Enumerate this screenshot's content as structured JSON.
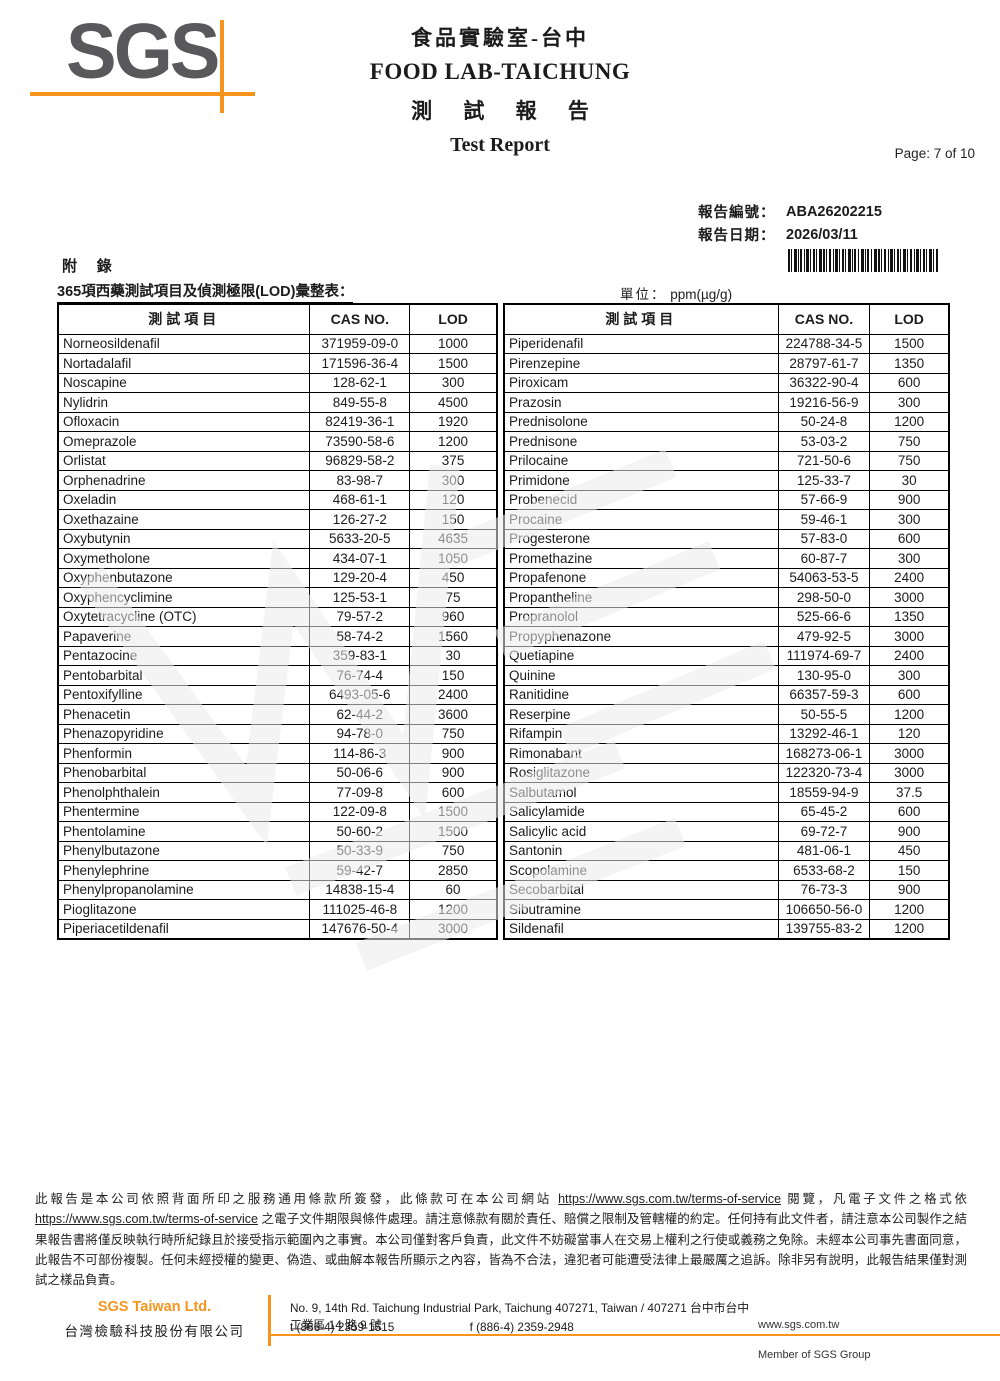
{
  "colors": {
    "accent_orange": "#F7941D",
    "logo_gray": "#59595B"
  },
  "header": {
    "logo_text": "SGS",
    "lab_title_cn": "食品實驗室-台中",
    "lab_title_en": "FOOD LAB-TAICHUNG",
    "report_title_cn": "測 試 報 告",
    "report_title_en": "Test Report",
    "page_label": "Page: 7 of 10"
  },
  "meta": {
    "report_no_label": "報告編號：",
    "report_no": "ABA26202215",
    "report_date_label": "報告日期：",
    "report_date": "2026/03/11"
  },
  "appendix": {
    "heading": "附 錄",
    "section_title": "365項西藥測試項目及偵測極限(LOD)彙整表：",
    "unit_label": "單位：",
    "unit_value": "ppm(µg/g)"
  },
  "table": {
    "headers": {
      "item": "測試項目",
      "cas": "CAS NO.",
      "lod": "LOD"
    },
    "left_rows": [
      [
        "Norneosildenafil",
        "371959-09-0",
        "1000"
      ],
      [
        "Nortadalafil",
        "171596-36-4",
        "1500"
      ],
      [
        "Noscapine",
        "128-62-1",
        "300"
      ],
      [
        "Nylidrin",
        "849-55-8",
        "4500"
      ],
      [
        "Ofloxacin",
        "82419-36-1",
        "1920"
      ],
      [
        "Omeprazole",
        "73590-58-6",
        "1200"
      ],
      [
        "Orlistat",
        "96829-58-2",
        "375"
      ],
      [
        "Orphenadrine",
        "83-98-7",
        "300"
      ],
      [
        "Oxeladin",
        "468-61-1",
        "120"
      ],
      [
        "Oxethazaine",
        "126-27-2",
        "150"
      ],
      [
        "Oxybutynin",
        "5633-20-5",
        "4635"
      ],
      [
        "Oxymetholone",
        "434-07-1",
        "1050"
      ],
      [
        "Oxyphenbutazone",
        "129-20-4",
        "450"
      ],
      [
        "Oxyphencyclimine",
        "125-53-1",
        "75"
      ],
      [
        "Oxytetracycline (OTC)",
        "79-57-2",
        "960"
      ],
      [
        "Papaverine",
        "58-74-2",
        "1560"
      ],
      [
        "Pentazocine",
        "359-83-1",
        "30"
      ],
      [
        "Pentobarbital",
        "76-74-4",
        "150"
      ],
      [
        "Pentoxifylline",
        "6493-05-6",
        "2400"
      ],
      [
        "Phenacetin",
        "62-44-2",
        "3600"
      ],
      [
        "Phenazopyridine",
        "94-78-0",
        "750"
      ],
      [
        "Phenformin",
        "114-86-3",
        "900"
      ],
      [
        "Phenobarbital",
        "50-06-6",
        "900"
      ],
      [
        "Phenolphthalein",
        "77-09-8",
        "600"
      ],
      [
        "Phentermine",
        "122-09-8",
        "1500"
      ],
      [
        "Phentolamine",
        "50-60-2",
        "1500"
      ],
      [
        "Phenylbutazone",
        "50-33-9",
        "750"
      ],
      [
        "Phenylephrine",
        "59-42-7",
        "2850"
      ],
      [
        "Phenylpropanolamine",
        "14838-15-4",
        "60"
      ],
      [
        "Pioglitazone",
        "111025-46-8",
        "1200"
      ],
      [
        "Piperiacetildenafil",
        "147676-50-4",
        "3000"
      ]
    ],
    "right_rows": [
      [
        "Piperidenafil",
        "224788-34-5",
        "1500"
      ],
      [
        "Pirenzepine",
        "28797-61-7",
        "1350"
      ],
      [
        "Piroxicam",
        "36322-90-4",
        "600"
      ],
      [
        "Prazosin",
        "19216-56-9",
        "300"
      ],
      [
        "Prednisolone",
        "50-24-8",
        "1200"
      ],
      [
        "Prednisone",
        "53-03-2",
        "750"
      ],
      [
        "Prilocaine",
        "721-50-6",
        "750"
      ],
      [
        "Primidone",
        "125-33-7",
        "30"
      ],
      [
        "Probenecid",
        "57-66-9",
        "900"
      ],
      [
        "Procaine",
        "59-46-1",
        "300"
      ],
      [
        "Progesterone",
        "57-83-0",
        "600"
      ],
      [
        "Promethazine",
        "60-87-7",
        "300"
      ],
      [
        "Propafenone",
        "54063-53-5",
        "2400"
      ],
      [
        "Propantheline",
        "298-50-0",
        "3000"
      ],
      [
        "Propranolol",
        "525-66-6",
        "1350"
      ],
      [
        "Propyphenazone",
        "479-92-5",
        "3000"
      ],
      [
        "Quetiapine",
        "111974-69-7",
        "2400"
      ],
      [
        "Quinine",
        "130-95-0",
        "300"
      ],
      [
        "Ranitidine",
        "66357-59-3",
        "600"
      ],
      [
        "Reserpine",
        "50-55-5",
        "1200"
      ],
      [
        "Rifampin",
        "13292-46-1",
        "120"
      ],
      [
        "Rimonabant",
        "168273-06-1",
        "3000"
      ],
      [
        "Rosiglitazone",
        "122320-73-4",
        "3000"
      ],
      [
        "Salbutamol",
        "18559-94-9",
        "37.5"
      ],
      [
        "Salicylamide",
        "65-45-2",
        "600"
      ],
      [
        "Salicylic acid",
        "69-72-7",
        "900"
      ],
      [
        "Santonin",
        "481-06-1",
        "450"
      ],
      [
        "Scopolamine",
        "6533-68-2",
        "150"
      ],
      [
        "Secobarbital",
        "76-73-3",
        "900"
      ],
      [
        "Sibutramine",
        "106650-56-0",
        "1200"
      ],
      [
        "Sildenafil",
        "139755-83-2",
        "1200"
      ]
    ]
  },
  "legal": {
    "p1": "此報告是本公司依照背面所印之服務通用條款所簽發，此條款可在本公司網站 ",
    "url1": "https://www.sgs.com.tw/terms-of-service",
    "p2": " 閱覽，凡電子文件之格式依 ",
    "url2": "https://www.sgs.com.tw/terms-of-service",
    "p3": " 之電子文件期限與條件處理。請注意條款有關於責任、賠償之限制及管轄權的約定。任何持有此文件者，請注意本公司製作之結果報告書將僅反映執行時所紀錄且於接受指示範圍內之事實。本公司僅對客戶負責，此文件不妨礙當事人在交易上權利之行使或義務之免除。未經本公司事先書面同意，此報告不可部份複製。任何未經授權的變更、偽造、或曲解本報告所顯示之內容，皆為不合法，違犯者可能遭受法律上最嚴厲之追訴。除非另有說明，此報告結果僅對測試之樣品負責。"
  },
  "footer": {
    "company_en": "SGS Taiwan Ltd.",
    "company_cn": "台灣檢驗科技股份有限公司",
    "address": "No. 9, 14th Rd. Taichung Industrial Park, Taichung 407271, Taiwan / 407271 台中市台中工業區 14 路 9 號",
    "tel": "t (886-4) 2359-1515",
    "fax": "f (886-4) 2359-2948",
    "website": "www.sgs.com.tw",
    "member": "Member of SGS Group"
  }
}
